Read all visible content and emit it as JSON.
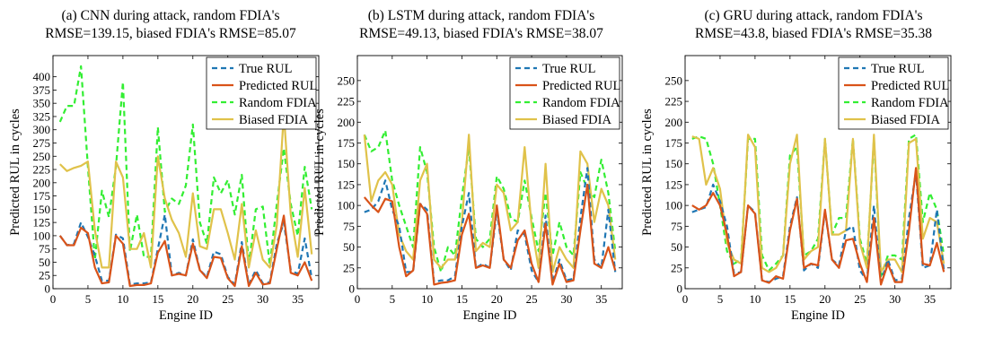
{
  "chart_data": [
    {
      "type": "line",
      "title": "(a) CNN during attack, random FDIA's",
      "subtitle": "RMSE=139.15, biased FDIA's RMSE=85.07",
      "xlabel": "Engine ID",
      "ylabel": "Predicted RUL in cycles",
      "xlim": [
        0,
        38
      ],
      "ylim": [
        0,
        440
      ],
      "xticks": [
        0,
        5,
        10,
        15,
        20,
        25,
        30,
        35
      ],
      "yticks": [
        0,
        25,
        50,
        75,
        100,
        125,
        150,
        175,
        200,
        225,
        250,
        275,
        300,
        325,
        350,
        375,
        400
      ],
      "grid": false,
      "legend_position": "top-right",
      "x": [
        1,
        2,
        3,
        4,
        5,
        6,
        7,
        8,
        9,
        10,
        11,
        12,
        13,
        14,
        15,
        16,
        17,
        18,
        19,
        20,
        21,
        22,
        23,
        24,
        25,
        26,
        27,
        28,
        29,
        30,
        31,
        32,
        33,
        34,
        35,
        36,
        37
      ],
      "series": [
        {
          "name": "True RUL",
          "color": "#1f77b4",
          "dash": "dashed",
          "values": [
            100,
            82,
            85,
            125,
            98,
            62,
            15,
            15,
            102,
            95,
            8,
            10,
            10,
            12,
            75,
            140,
            25,
            30,
            25,
            93,
            35,
            22,
            70,
            65,
            22,
            8,
            88,
            8,
            35,
            10,
            12,
            85,
            125,
            35,
            28,
            95,
            20
          ]
        },
        {
          "name": "Predicted RUL",
          "color": "#d95319",
          "dash": "solid",
          "values": [
            100,
            82,
            82,
            115,
            105,
            40,
            10,
            12,
            100,
            85,
            5,
            7,
            7,
            10,
            68,
            90,
            25,
            28,
            25,
            85,
            35,
            20,
            60,
            58,
            20,
            5,
            80,
            5,
            30,
            8,
            10,
            75,
            138,
            30,
            25,
            50,
            15
          ]
        },
        {
          "name": "Random FDIA",
          "color": "#33ee33",
          "dash": "dashed",
          "values": [
            315,
            345,
            345,
            420,
            230,
            55,
            185,
            135,
            230,
            390,
            70,
            140,
            60,
            60,
            305,
            145,
            170,
            160,
            195,
            310,
            125,
            85,
            210,
            180,
            205,
            140,
            215,
            45,
            150,
            155,
            45,
            160,
            265,
            160,
            100,
            230,
            150
          ]
        },
        {
          "name": "Biased FDIA",
          "color": "#e0c24a",
          "dash": "solid",
          "values": [
            235,
            222,
            228,
            232,
            240,
            110,
            40,
            40,
            240,
            210,
            75,
            75,
            105,
            40,
            250,
            170,
            130,
            105,
            60,
            180,
            80,
            75,
            150,
            150,
            105,
            55,
            160,
            40,
            110,
            55,
            40,
            120,
            330,
            140,
            60,
            190,
            65
          ]
        }
      ]
    },
    {
      "type": "line",
      "title": "(b) LSTM during attack, random FDIA's",
      "subtitle": "RMSE=49.13, biased FDIA's RMSE=38.07",
      "xlabel": "Engine ID",
      "ylabel": "Predicted RUL in cycles",
      "xlim": [
        0,
        38
      ],
      "ylim": [
        0,
        280
      ],
      "xticks": [
        0,
        5,
        10,
        15,
        20,
        25,
        30,
        35
      ],
      "yticks": [
        0,
        25,
        50,
        75,
        100,
        125,
        150,
        175,
        200,
        225,
        250
      ],
      "grid": false,
      "legend_position": "top-right",
      "x": [
        1,
        2,
        3,
        4,
        5,
        6,
        7,
        8,
        9,
        10,
        11,
        12,
        13,
        14,
        15,
        16,
        17,
        18,
        19,
        20,
        21,
        22,
        23,
        24,
        25,
        26,
        27,
        28,
        29,
        30,
        31,
        32,
        33,
        34,
        35,
        36,
        37
      ],
      "series": [
        {
          "name": "True RUL",
          "color": "#1f77b4",
          "dash": "dashed",
          "values": [
            92,
            95,
            105,
            130,
            95,
            75,
            20,
            20,
            102,
            95,
            8,
            10,
            10,
            15,
            75,
            115,
            25,
            30,
            25,
            93,
            35,
            22,
            70,
            65,
            22,
            8,
            88,
            8,
            35,
            10,
            12,
            85,
            145,
            35,
            25,
            95,
            20
          ]
        },
        {
          "name": "Predicted RUL",
          "color": "#d95319",
          "dash": "solid",
          "values": [
            110,
            100,
            92,
            108,
            105,
            50,
            15,
            22,
            102,
            90,
            5,
            7,
            8,
            10,
            65,
            90,
            25,
            28,
            25,
            100,
            35,
            25,
            58,
            70,
            30,
            8,
            78,
            5,
            30,
            8,
            10,
            70,
            125,
            30,
            25,
            50,
            22
          ]
        },
        {
          "name": "Random FDIA",
          "color": "#33ee33",
          "dash": "dashed",
          "values": [
            185,
            165,
            170,
            190,
            130,
            100,
            75,
            50,
            170,
            140,
            50,
            20,
            50,
            40,
            110,
            170,
            60,
            50,
            60,
            135,
            120,
            85,
            80,
            130,
            85,
            45,
            115,
            40,
            80,
            50,
            40,
            140,
            120,
            110,
            155,
            115,
            45
          ]
        },
        {
          "name": "Biased FDIA",
          "color": "#e0c24a",
          "dash": "solid",
          "values": [
            185,
            105,
            130,
            140,
            125,
            65,
            45,
            35,
            130,
            150,
            35,
            25,
            35,
            35,
            80,
            185,
            45,
            55,
            50,
            125,
            115,
            70,
            80,
            170,
            75,
            25,
            150,
            20,
            50,
            35,
            25,
            165,
            150,
            80,
            120,
            100,
            35
          ]
        }
      ]
    },
    {
      "type": "line",
      "title": "(c) GRU during attack, random FDIA's",
      "subtitle": "RMSE=43.8, biased FDIA's RMSE=35.38",
      "xlabel": "Engine ID",
      "ylabel": "Predicted RUL in cycles",
      "xlim": [
        0,
        38
      ],
      "ylim": [
        0,
        280
      ],
      "xticks": [
        0,
        5,
        10,
        15,
        20,
        25,
        30,
        35
      ],
      "yticks": [
        0,
        25,
        50,
        75,
        100,
        125,
        150,
        175,
        200,
        225,
        250
      ],
      "grid": false,
      "legend_position": "top-right",
      "x": [
        1,
        2,
        3,
        4,
        5,
        6,
        7,
        8,
        9,
        10,
        11,
        12,
        13,
        14,
        15,
        16,
        17,
        18,
        19,
        20,
        21,
        22,
        23,
        24,
        25,
        26,
        27,
        28,
        29,
        30,
        31,
        32,
        33,
        34,
        35,
        36,
        37
      ],
      "series": [
        {
          "name": "True RUL",
          "color": "#1f77b4",
          "dash": "dashed",
          "values": [
            92,
            95,
            98,
            125,
            105,
            75,
            18,
            20,
            100,
            92,
            10,
            8,
            12,
            15,
            75,
            110,
            22,
            30,
            25,
            93,
            35,
            28,
            70,
            75,
            22,
            10,
            100,
            8,
            35,
            10,
            12,
            85,
            140,
            25,
            28,
            95,
            22
          ]
        },
        {
          "name": "Predicted RUL",
          "color": "#d95319",
          "dash": "solid",
          "values": [
            100,
            95,
            100,
            115,
            100,
            65,
            15,
            20,
            100,
            90,
            10,
            7,
            15,
            12,
            70,
            108,
            25,
            30,
            28,
            95,
            35,
            25,
            58,
            60,
            30,
            8,
            85,
            5,
            30,
            8,
            8,
            70,
            145,
            30,
            28,
            55,
            20
          ]
        },
        {
          "name": "Random FDIA",
          "color": "#33ee33",
          "dash": "dashed",
          "values": [
            180,
            183,
            180,
            150,
            100,
            45,
            30,
            35,
            180,
            180,
            40,
            22,
            30,
            40,
            160,
            170,
            40,
            45,
            60,
            180,
            65,
            85,
            85,
            180,
            60,
            30,
            180,
            15,
            40,
            40,
            35,
            180,
            185,
            80,
            115,
            95,
            40
          ]
        },
        {
          "name": "Biased FDIA",
          "color": "#e0c24a",
          "dash": "solid",
          "values": [
            183,
            180,
            125,
            145,
            120,
            55,
            35,
            30,
            185,
            170,
            25,
            20,
            25,
            40,
            150,
            185,
            35,
            45,
            50,
            180,
            65,
            65,
            70,
            180,
            55,
            25,
            185,
            20,
            35,
            35,
            20,
            175,
            180,
            60,
            85,
            80,
            30
          ]
        }
      ]
    }
  ]
}
